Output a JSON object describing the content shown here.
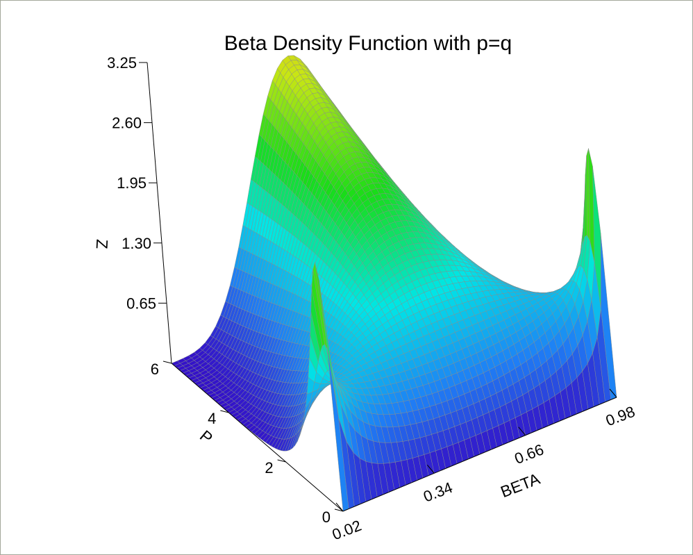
{
  "chart_data": {
    "type": "surface",
    "title": "Beta Density Function with p=q",
    "function": "z = x^(p-1) * (1-x)^(p-1) / B(p,p)",
    "x_axis": {
      "label": "BETA",
      "range": [
        0.02,
        0.98
      ],
      "ticks": [
        "0.02",
        "0.34",
        "0.66",
        "0.98"
      ]
    },
    "y_axis": {
      "label": "P",
      "range": [
        0,
        6
      ],
      "ticks": [
        "0",
        "2",
        "4",
        "6"
      ]
    },
    "z_axis": {
      "label": "Z",
      "range": [
        0,
        3.25
      ],
      "ticks": [
        "0.65",
        "1.30",
        "1.95",
        "2.60",
        "3.25"
      ]
    },
    "surface_grid": {
      "x_steps": 48,
      "p_steps": 60
    },
    "colormap": [
      "#3412c8",
      "#1f7ff5",
      "#00e6e6",
      "#19dc19",
      "#c8e614",
      "#f0a023"
    ],
    "mesh_color": "#8a8f8a",
    "background": "#ffffff"
  }
}
